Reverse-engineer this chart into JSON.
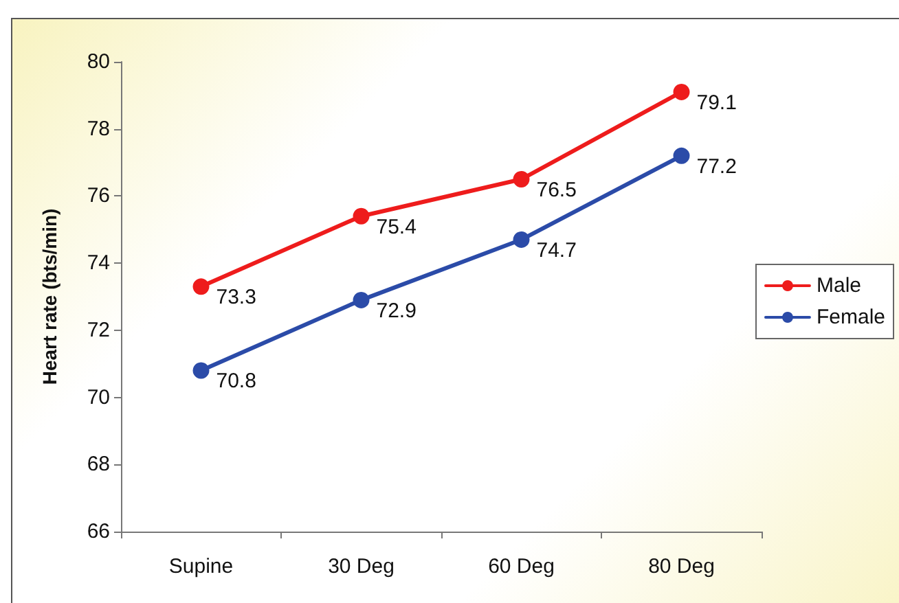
{
  "chart_data": {
    "type": "line",
    "ylabel": "Heart rate (bts/min)",
    "categories": [
      "Supine",
      "30 Deg",
      "60 Deg",
      "80 Deg"
    ],
    "series": [
      {
        "name": "Male",
        "color": "#ee1c1c",
        "values": [
          73.3,
          75.4,
          76.5,
          79.1
        ]
      },
      {
        "name": "Female",
        "color": "#2b4ba8",
        "values": [
          70.8,
          72.9,
          74.7,
          77.2
        ]
      }
    ],
    "ylim": [
      66,
      80
    ],
    "yticks": [
      66,
      68,
      70,
      72,
      74,
      76,
      78,
      80
    ],
    "data_labels": true,
    "grid": false,
    "legend": "right",
    "marker": "circle",
    "line_style": "solid"
  }
}
